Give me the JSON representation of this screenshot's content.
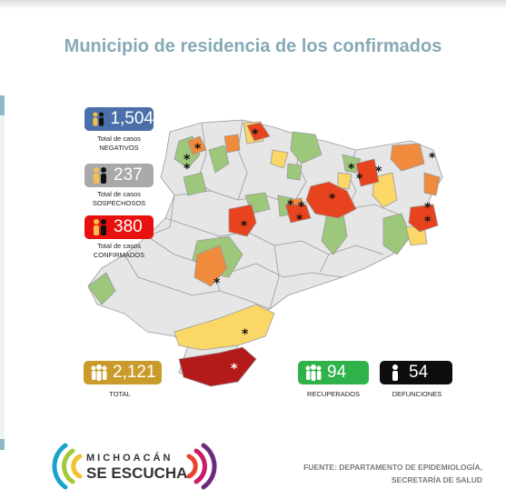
{
  "title": "Municipio de residencia de los confirmados",
  "stats": {
    "negativos": {
      "value": "1,504",
      "caption_1": "Total de casos",
      "caption_2": "NEGATIVOS",
      "color": "#4a6fa9"
    },
    "sospechosos": {
      "value": "237",
      "caption_1": "Total de casos",
      "caption_2": "SOSPECHOSOS",
      "color": "#a9a9a9"
    },
    "confirmados": {
      "value": "380",
      "caption_1": "Total de casos",
      "caption_2": "CONFIRMADOS",
      "color": "#e8110f"
    },
    "total": {
      "value": "2,121",
      "caption": "TOTAL",
      "color": "#c99b2a"
    },
    "recuperados": {
      "value": "94",
      "caption": "RECUPERADOS",
      "color": "#2fb24a"
    },
    "defunciones": {
      "value": "54",
      "caption": "DEFUNCIONES",
      "color": "#0d0d0d"
    }
  },
  "map": {
    "legend_colors": {
      "none": "#e6e6e6",
      "low": "#9dc77a",
      "mid": "#fad766",
      "high": "#f08a3c",
      "very_high": "#e8431f",
      "max": "#b51a1a"
    },
    "marker": "*"
  },
  "logo": {
    "line1": "MICHOACÁN",
    "line2": "SE ESCUCHA"
  },
  "source": {
    "line1": "FUENTE: DEPARTAMENTO DE EPIDEMIOLOGÍA,",
    "line2": "SECRETARÍA DE SALUD"
  }
}
